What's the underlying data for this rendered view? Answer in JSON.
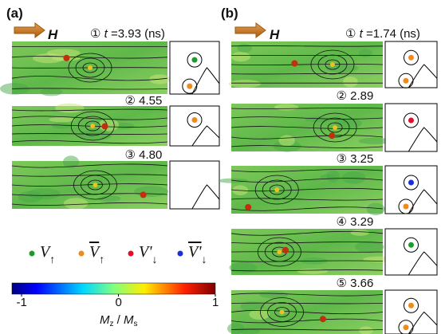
{
  "panels": [
    {
      "label": "(a)",
      "field": "H",
      "frames": [
        {
          "index": "①",
          "variable": "t",
          "label": "=3.93 (ns)"
        },
        {
          "index": "②",
          "label": "4.55"
        },
        {
          "index": "③",
          "label": "4.80"
        }
      ]
    },
    {
      "label": "(b)",
      "field": "H",
      "frames": [
        {
          "index": "①",
          "variable": "t",
          "label": "=1.74 (ns)"
        },
        {
          "index": "②",
          "label": "2.89"
        },
        {
          "index": "③",
          "label": "3.25"
        },
        {
          "index": "④",
          "label": "3.29"
        },
        {
          "index": "⑤",
          "label": "3.66"
        }
      ]
    }
  ],
  "legend": [
    {
      "color": "#1e9a2e",
      "symbol": "V",
      "subscript": "↑",
      "overline": false
    },
    {
      "color": "#f08a1c",
      "symbol": "V",
      "subscript": "↑",
      "overline": true
    },
    {
      "color": "#e0102a",
      "symbol": "V'",
      "subscript": "↓",
      "overline": false
    },
    {
      "color": "#1a2fd8",
      "symbol": "V'",
      "subscript": "↓",
      "overline": true
    }
  ],
  "colorbar": {
    "ticks": [
      -1,
      0,
      1
    ],
    "lim": [
      -1,
      1
    ],
    "label_main": "M",
    "label_main_sub": "z",
    "label_sep": " / ",
    "label_den": "M",
    "label_den_sub": "s"
  }
}
